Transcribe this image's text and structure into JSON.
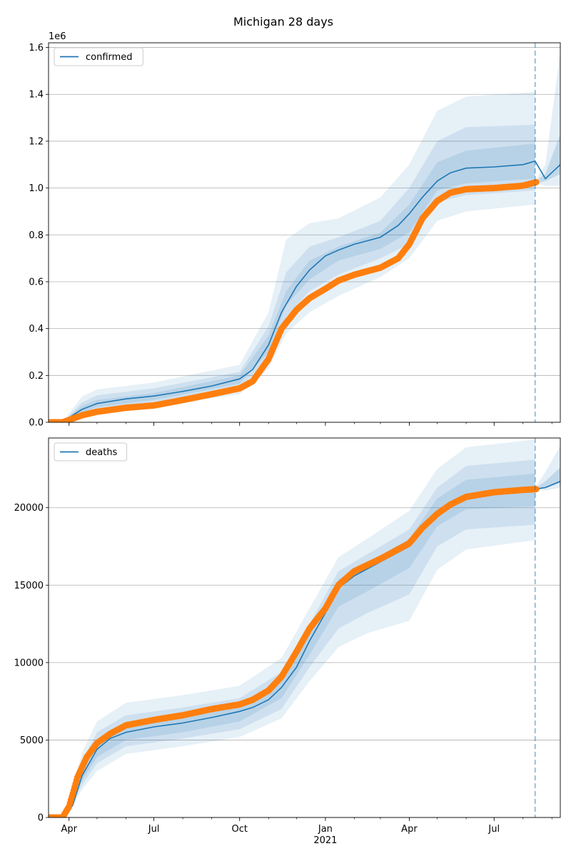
{
  "figure": {
    "title": "Michigan 28 days"
  },
  "colors": {
    "model": "#1f77b4",
    "observed": "#ff7f0e",
    "band": "#1f77b4",
    "grid": "#b0b0b0"
  },
  "chart_data": [
    {
      "type": "line",
      "panel": "confirmed",
      "legend": [
        "confirmed"
      ],
      "legend_placement": "top-left",
      "grid": "horizontal",
      "xlim": [
        "2020-03-10",
        "2021-09-10"
      ],
      "ylim": [
        0,
        1620000
      ],
      "y_multiplier_label": "1e6",
      "y_tick_labels": [
        "0.0",
        "0.2",
        "0.4",
        "0.6",
        "0.8",
        "1.0",
        "1.2",
        "1.4",
        "1.6"
      ],
      "y_tick_values": [
        0,
        200000,
        400000,
        600000,
        800000,
        1000000,
        1200000,
        1400000,
        1600000
      ],
      "x_tick_labels": [],
      "forecast_start": "2021-08-14",
      "median": {
        "x": [
          "2020-03-10",
          "2020-03-25",
          "2020-04-01",
          "2020-04-15",
          "2020-05-01",
          "2020-06-01",
          "2020-07-01",
          "2020-08-01",
          "2020-09-01",
          "2020-10-01",
          "2020-10-15",
          "2020-11-01",
          "2020-11-15",
          "2020-12-01",
          "2020-12-15",
          "2021-01-01",
          "2021-01-15",
          "2021-02-01",
          "2021-03-01",
          "2021-03-20",
          "2021-04-01",
          "2021-04-15",
          "2021-05-01",
          "2021-05-15",
          "2021-06-01",
          "2021-07-01",
          "2021-08-01",
          "2021-08-14",
          "2021-08-25",
          "2021-09-10"
        ],
        "y": [
          0,
          0,
          20000,
          55000,
          80000,
          100000,
          112000,
          132000,
          155000,
          185000,
          225000,
          330000,
          470000,
          580000,
          650000,
          710000,
          735000,
          760000,
          790000,
          840000,
          890000,
          960000,
          1030000,
          1065000,
          1085000,
          1090000,
          1100000,
          1115000,
          1040000,
          1100000
        ]
      },
      "bands": [
        {
          "level": "outer",
          "x": [
            "2020-03-10",
            "2020-03-25",
            "2020-04-15",
            "2020-05-01",
            "2020-07-01",
            "2020-10-01",
            "2020-11-01",
            "2020-11-20",
            "2020-12-15",
            "2021-01-15",
            "2021-03-01",
            "2021-04-01",
            "2021-05-01",
            "2021-06-01",
            "2021-08-14"
          ],
          "upper": [
            0,
            0,
            110000,
            140000,
            170000,
            245000,
            470000,
            780000,
            850000,
            870000,
            960000,
            1100000,
            1330000,
            1390000,
            1410000
          ],
          "lower": [
            0,
            0,
            20000,
            40000,
            65000,
            120000,
            230000,
            380000,
            470000,
            540000,
            620000,
            700000,
            860000,
            900000,
            930000
          ]
        },
        {
          "level": "middle",
          "x": [
            "2020-03-10",
            "2020-03-25",
            "2020-04-15",
            "2020-05-01",
            "2020-07-01",
            "2020-10-01",
            "2020-11-01",
            "2020-11-20",
            "2020-12-15",
            "2021-01-15",
            "2021-03-01",
            "2021-04-01",
            "2021-05-01",
            "2021-06-01",
            "2021-08-14"
          ],
          "upper": [
            0,
            0,
            85000,
            115000,
            145000,
            215000,
            410000,
            640000,
            750000,
            790000,
            860000,
            1000000,
            1200000,
            1260000,
            1270000
          ],
          "lower": [
            0,
            0,
            30000,
            55000,
            80000,
            145000,
            270000,
            450000,
            560000,
            630000,
            700000,
            760000,
            940000,
            970000,
            990000
          ]
        },
        {
          "level": "inner",
          "x": [
            "2020-03-10",
            "2020-03-25",
            "2020-04-15",
            "2020-05-01",
            "2020-07-01",
            "2020-10-01",
            "2020-11-01",
            "2020-11-20",
            "2020-12-15",
            "2021-01-15",
            "2021-03-01",
            "2021-04-01",
            "2021-05-01",
            "2021-06-01",
            "2021-08-14"
          ],
          "upper": [
            0,
            0,
            70000,
            95000,
            125000,
            200000,
            370000,
            560000,
            690000,
            750000,
            810000,
            930000,
            1110000,
            1160000,
            1190000
          ],
          "lower": [
            0,
            0,
            40000,
            65000,
            95000,
            165000,
            300000,
            500000,
            610000,
            690000,
            740000,
            810000,
            990000,
            1020000,
            1040000
          ]
        }
      ],
      "future_bands": {
        "x": [
          "2021-08-14",
          "2021-08-25",
          "2021-09-10"
        ],
        "outer_upper": [
          1030000,
          1100000,
          1580000
        ],
        "outer_lower": [
          1020000,
          1010000,
          1010000
        ],
        "inner_upper": [
          1030000,
          1060000,
          1230000
        ],
        "inner_lower": [
          1020000,
          1030000,
          1060000
        ]
      },
      "observed": {
        "x": [
          "2020-03-10",
          "2020-03-25",
          "2020-04-01",
          "2020-04-15",
          "2020-05-01",
          "2020-06-01",
          "2020-07-01",
          "2020-08-01",
          "2020-09-01",
          "2020-10-01",
          "2020-10-15",
          "2020-11-01",
          "2020-11-15",
          "2020-12-01",
          "2020-12-15",
          "2021-01-01",
          "2021-01-15",
          "2021-02-01",
          "2021-03-01",
          "2021-03-20",
          "2021-04-01",
          "2021-04-15",
          "2021-05-01",
          "2021-05-15",
          "2021-06-01",
          "2021-07-01",
          "2021-08-01",
          "2021-08-15"
        ],
        "y": [
          0,
          0,
          10000,
          30000,
          45000,
          62000,
          72000,
          95000,
          120000,
          145000,
          175000,
          270000,
          400000,
          480000,
          530000,
          570000,
          605000,
          630000,
          660000,
          700000,
          760000,
          870000,
          945000,
          980000,
          995000,
          1000000,
          1010000,
          1025000
        ]
      }
    },
    {
      "type": "line",
      "panel": "deaths",
      "legend": [
        "deaths"
      ],
      "legend_placement": "top-left",
      "grid": "horizontal",
      "xlim": [
        "2020-03-10",
        "2021-09-10"
      ],
      "ylim": [
        0,
        24500
      ],
      "y_tick_labels": [
        "0",
        "5000",
        "10000",
        "15000",
        "20000"
      ],
      "y_tick_values": [
        0,
        5000,
        10000,
        15000,
        20000
      ],
      "x_tick_labels": [
        "Apr",
        "Jul",
        "Oct",
        "Jan",
        "Apr",
        "Jul"
      ],
      "x_tick_values": [
        "2020-04-01",
        "2020-07-01",
        "2020-10-01",
        "2021-01-01",
        "2021-04-01",
        "2021-07-01"
      ],
      "x_year_label": "2021",
      "forecast_start": "2021-08-14",
      "median": {
        "x": [
          "2020-03-10",
          "2020-03-28",
          "2020-04-05",
          "2020-04-15",
          "2020-05-01",
          "2020-05-15",
          "2020-06-01",
          "2020-07-01",
          "2020-08-01",
          "2020-09-01",
          "2020-10-01",
          "2020-10-15",
          "2020-11-01",
          "2020-11-15",
          "2020-12-01",
          "2020-12-15",
          "2021-01-01",
          "2021-01-15",
          "2021-02-01",
          "2021-03-01",
          "2021-04-01",
          "2021-04-15",
          "2021-05-01",
          "2021-05-15",
          "2021-06-01",
          "2021-07-01",
          "2021-08-01",
          "2021-08-14",
          "2021-08-25",
          "2021-09-10"
        ],
        "y": [
          0,
          0,
          800,
          2700,
          4400,
          5100,
          5500,
          5850,
          6100,
          6450,
          6850,
          7100,
          7600,
          8400,
          9700,
          11400,
          13200,
          14800,
          15600,
          16500,
          17500,
          18600,
          19700,
          20300,
          20800,
          21000,
          21100,
          21200,
          21300,
          21700
        ]
      },
      "bands": [
        {
          "level": "outer",
          "x": [
            "2020-03-10",
            "2020-03-28",
            "2020-04-15",
            "2020-05-01",
            "2020-06-01",
            "2020-08-01",
            "2020-10-01",
            "2020-11-15",
            "2020-12-15",
            "2021-01-15",
            "2021-02-15",
            "2021-04-01",
            "2021-05-01",
            "2021-06-01",
            "2021-08-14"
          ],
          "upper": [
            0,
            0,
            4200,
            6200,
            7400,
            7900,
            8500,
            10300,
            13500,
            16800,
            18000,
            19800,
            22500,
            23900,
            24400
          ],
          "lower": [
            0,
            0,
            1800,
            3000,
            4100,
            4600,
            5200,
            6400,
            8800,
            11000,
            11900,
            12700,
            16000,
            17300,
            17900
          ]
        },
        {
          "level": "middle",
          "x": [
            "2020-03-10",
            "2020-03-28",
            "2020-04-15",
            "2020-05-01",
            "2020-06-01",
            "2020-08-01",
            "2020-10-01",
            "2020-11-15",
            "2020-12-15",
            "2021-01-15",
            "2021-02-15",
            "2021-04-01",
            "2021-05-01",
            "2021-06-01",
            "2021-08-14"
          ],
          "upper": [
            0,
            0,
            3600,
            5500,
            6600,
            7100,
            7700,
            9400,
            12500,
            15900,
            17000,
            18600,
            21300,
            22700,
            23100
          ],
          "lower": [
            0,
            0,
            2100,
            3500,
            4600,
            5100,
            5700,
            7000,
            9700,
            12200,
            13200,
            14400,
            17500,
            18600,
            18900
          ]
        },
        {
          "level": "inner",
          "x": [
            "2020-03-10",
            "2020-03-28",
            "2020-04-15",
            "2020-05-01",
            "2020-06-01",
            "2020-08-01",
            "2020-10-01",
            "2020-11-15",
            "2020-12-15",
            "2021-01-15",
            "2021-02-15",
            "2021-04-01",
            "2021-05-01",
            "2021-06-01",
            "2021-08-14"
          ],
          "upper": [
            0,
            0,
            3200,
            5000,
            6100,
            6600,
            7200,
            8900,
            11900,
            15400,
            16400,
            18000,
            20600,
            21800,
            22200
          ],
          "lower": [
            0,
            0,
            2400,
            3900,
            5000,
            5500,
            6200,
            7700,
            10500,
            13600,
            14600,
            16100,
            18800,
            19900,
            20100
          ]
        }
      ],
      "future_bands": {
        "x": [
          "2021-08-14",
          "2021-08-25",
          "2021-09-10"
        ],
        "outer_upper": [
          21300,
          22300,
          24000
        ],
        "outer_lower": [
          21200,
          21100,
          21300
        ],
        "inner_upper": [
          21250,
          21700,
          22600
        ],
        "inner_lower": [
          21200,
          21250,
          21600
        ]
      },
      "observed": {
        "x": [
          "2020-03-10",
          "2020-03-25",
          "2020-04-01",
          "2020-04-10",
          "2020-04-20",
          "2020-05-01",
          "2020-05-15",
          "2020-06-01",
          "2020-07-01",
          "2020-08-01",
          "2020-09-01",
          "2020-10-01",
          "2020-10-15",
          "2020-11-01",
          "2020-11-15",
          "2020-12-01",
          "2020-12-15",
          "2021-01-01",
          "2021-01-15",
          "2021-02-01",
          "2021-03-01",
          "2021-04-01",
          "2021-04-15",
          "2021-05-01",
          "2021-05-15",
          "2021-06-01",
          "2021-07-01",
          "2021-08-01",
          "2021-08-15"
        ],
        "y": [
          0,
          0,
          700,
          2600,
          3900,
          4800,
          5400,
          5950,
          6300,
          6600,
          7000,
          7300,
          7600,
          8200,
          9100,
          10700,
          12200,
          13500,
          15000,
          15900,
          16700,
          17700,
          18700,
          19600,
          20200,
          20700,
          21000,
          21150,
          21200
        ]
      }
    }
  ]
}
